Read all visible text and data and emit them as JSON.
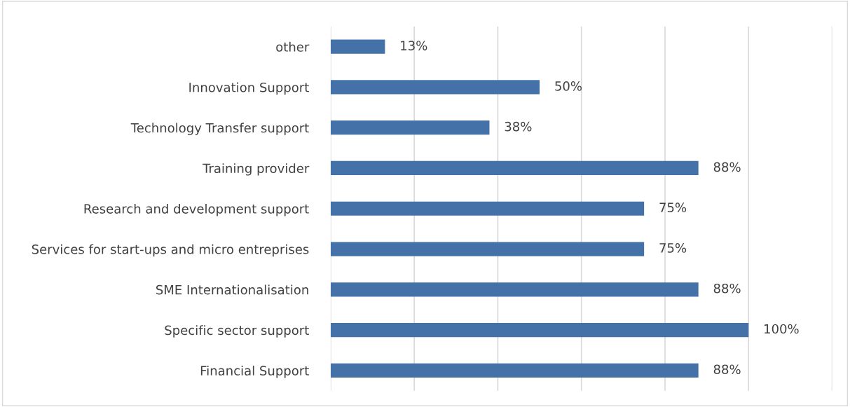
{
  "chart_data": {
    "type": "bar",
    "orientation": "horizontal",
    "categories": [
      "other",
      "Innovation Support",
      "Technology Transfer support",
      "Training provider",
      "Research and development support",
      "Services for start-ups and micro entreprises",
      "SME Internationalisation",
      "Specific sector support",
      "Financial Support"
    ],
    "values": [
      13,
      50,
      38,
      88,
      75,
      75,
      88,
      100,
      88
    ],
    "value_labels": [
      "13%",
      "50%",
      "38%",
      "88%",
      "75%",
      "75%",
      "88%",
      "100%",
      "88%"
    ],
    "color": "#4472a8",
    "xlim": [
      0,
      120
    ],
    "xticks": [
      {
        "value": 0,
        "label": null
      },
      {
        "value": 20,
        "label": null
      },
      {
        "value": 40,
        "label": null
      },
      {
        "value": 60,
        "label": null
      },
      {
        "value": 80,
        "label": null
      },
      {
        "value": 100,
        "label": null
      },
      {
        "value": 120,
        "label": null
      }
    ],
    "tick_labels": "y",
    "grid": "x",
    "legend": false
  }
}
